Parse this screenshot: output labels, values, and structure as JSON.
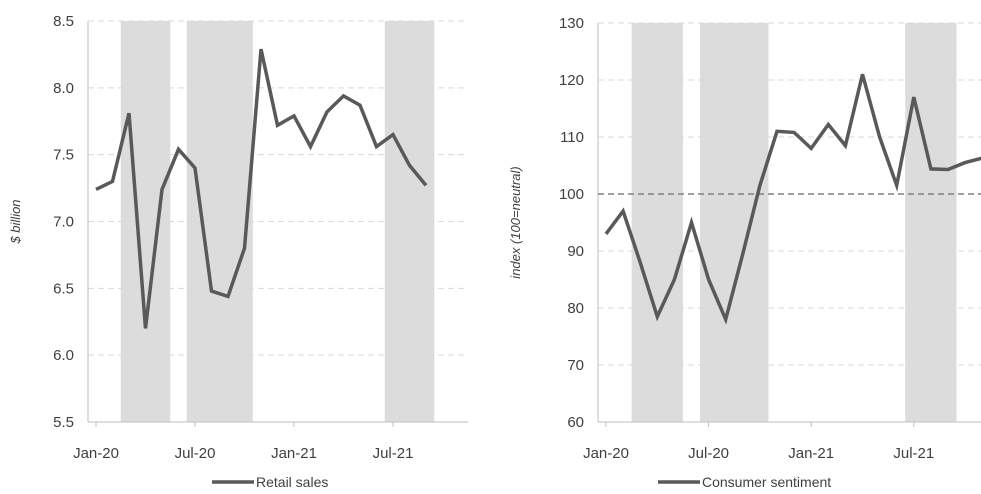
{
  "chart_data": [
    {
      "type": "line",
      "ylabel": "$ billion",
      "ylim": [
        5.5,
        8.5
      ],
      "yticks": [
        "5.5",
        "6.0",
        "6.5",
        "7.0",
        "7.5",
        "8.0",
        "8.5"
      ],
      "xticks": [
        "Jan-20",
        "Jul-20",
        "Jan-21",
        "Jul-21"
      ],
      "grid": true,
      "legend_position": "bottom",
      "x": [
        "2020-01",
        "2020-02",
        "2020-03",
        "2020-04",
        "2020-05",
        "2020-06",
        "2020-07",
        "2020-08",
        "2020-09",
        "2020-10",
        "2020-11",
        "2020-12",
        "2021-01",
        "2021-02",
        "2021-03",
        "2021-04",
        "2021-05",
        "2021-06",
        "2021-07",
        "2021-08",
        "2021-09"
      ],
      "shaded_periods": [
        [
          "2020-03",
          "2020-05"
        ],
        [
          "2020-07",
          "2020-10"
        ],
        [
          "2021-07",
          "2021-09"
        ]
      ],
      "series": [
        {
          "name": "Retail sales",
          "values": [
            7.24,
            7.3,
            7.81,
            6.2,
            7.24,
            7.54,
            7.4,
            6.48,
            6.44,
            6.8,
            8.29,
            7.72,
            7.79,
            7.56,
            7.82,
            7.94,
            7.87,
            7.56,
            7.65,
            7.42,
            7.27
          ]
        }
      ],
      "color": "#595959"
    },
    {
      "type": "line",
      "ylabel": "index (100=neutral)",
      "ylim": [
        60,
        130
      ],
      "yticks": [
        "60",
        "70",
        "80",
        "90",
        "100",
        "110",
        "120",
        "130"
      ],
      "xticks": [
        "Jan-20",
        "Jul-20",
        "Jan-21",
        "Jul-21"
      ],
      "grid": true,
      "reference_line": 100,
      "legend_position": "bottom",
      "x": [
        "2020-01",
        "2020-02",
        "2020-03",
        "2020-04",
        "2020-05",
        "2020-06",
        "2020-07",
        "2020-08",
        "2020-09",
        "2020-10",
        "2020-11",
        "2020-12",
        "2021-01",
        "2021-02",
        "2021-03",
        "2021-04",
        "2021-05",
        "2021-06",
        "2021-07",
        "2021-08",
        "2021-09",
        "2021-10",
        "2021-11"
      ],
      "shaded_periods": [
        [
          "2020-03",
          "2020-05"
        ],
        [
          "2020-07",
          "2020-10"
        ],
        [
          "2021-07",
          "2021-09"
        ]
      ],
      "series": [
        {
          "name": "Consumer sentiment",
          "values": [
            93.0,
            97.0,
            88.0,
            78.5,
            85.0,
            95.0,
            85.0,
            78.0,
            89.5,
            101.5,
            111.0,
            110.8,
            108.0,
            112.2,
            108.5,
            121.0,
            110.0,
            101.5,
            117.0,
            104.4,
            104.3,
            105.5,
            106.3
          ]
        }
      ],
      "color": "#595959"
    }
  ]
}
